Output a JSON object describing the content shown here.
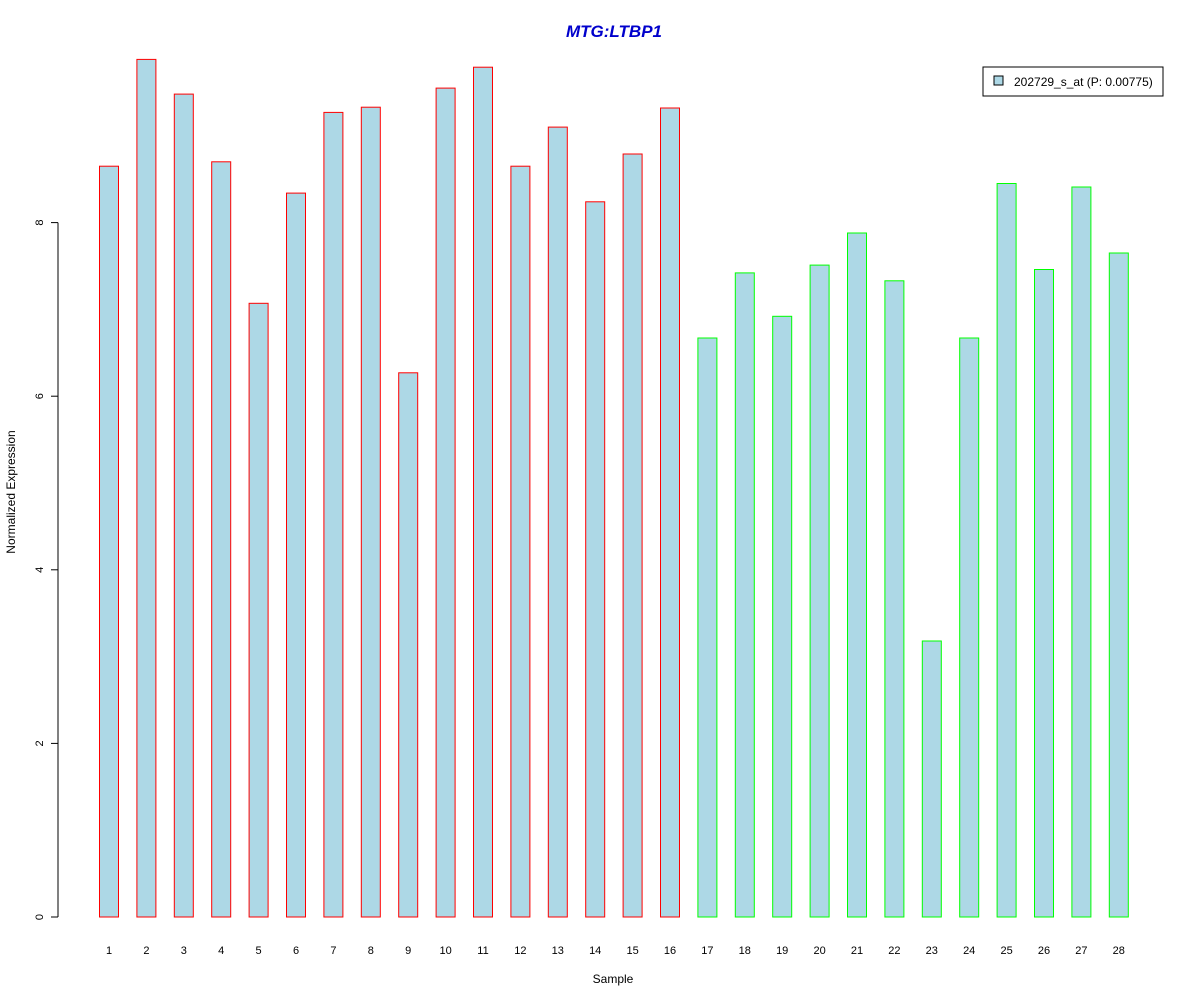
{
  "chart_data": {
    "type": "bar",
    "title": "MTG:LTBP1",
    "xlabel": "Sample",
    "ylabel": "Normalized Expression",
    "categories": [
      "1",
      "2",
      "3",
      "4",
      "5",
      "6",
      "7",
      "8",
      "9",
      "10",
      "11",
      "12",
      "13",
      "14",
      "15",
      "16",
      "17",
      "18",
      "19",
      "20",
      "21",
      "22",
      "23",
      "24",
      "25",
      "26",
      "27",
      "28"
    ],
    "values": [
      8.65,
      9.88,
      9.48,
      8.7,
      7.07,
      8.34,
      9.27,
      9.33,
      6.27,
      9.55,
      9.79,
      8.65,
      9.1,
      8.24,
      8.79,
      9.32,
      6.67,
      7.42,
      6.92,
      7.51,
      7.88,
      7.33,
      3.18,
      6.67,
      8.45,
      7.46,
      8.41,
      7.65
    ],
    "groups": [
      1,
      1,
      1,
      1,
      1,
      1,
      1,
      1,
      1,
      1,
      1,
      1,
      1,
      1,
      1,
      1,
      2,
      2,
      2,
      2,
      2,
      2,
      2,
      2,
      2,
      2,
      2,
      2
    ],
    "yticks": [
      0,
      2,
      4,
      6,
      8
    ],
    "ylim": [
      0,
      10
    ],
    "legend": {
      "placement": "top-right",
      "entries": [
        "202729_s_at (P: 0.00775)"
      ]
    },
    "colors": {
      "title": "#0000cc",
      "bar_fill": "#add8e6",
      "group1_border": "#ff0000",
      "group2_border": "#00ff00",
      "axis": "#000000"
    },
    "grid": false
  }
}
